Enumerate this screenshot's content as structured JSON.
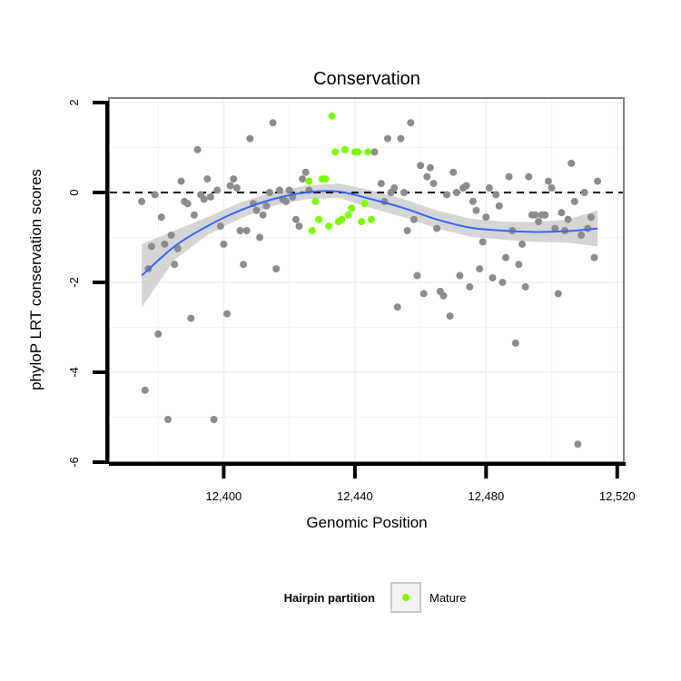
{
  "chart_data": {
    "type": "scatter",
    "title": "Conservation",
    "xlabel": "Genomic Position",
    "ylabel": "phyloP LRT conservation scores",
    "xlim": [
      12365,
      12522
    ],
    "ylim": [
      -6,
      2.1
    ],
    "x_ticks": [
      {
        "value": 12400,
        "label": "12,400"
      },
      {
        "value": 12440,
        "label": "12,440"
      },
      {
        "value": 12480,
        "label": "12,480"
      },
      {
        "value": 12520,
        "label": "12,520"
      }
    ],
    "y_ticks": [
      {
        "value": 2,
        "label": "2"
      },
      {
        "value": 0,
        "label": "0"
      },
      {
        "value": -2,
        "label": "-2"
      },
      {
        "value": -4,
        "label": "-4"
      },
      {
        "value": -6,
        "label": "-6"
      }
    ],
    "grid": true,
    "reference_line": {
      "y": 0,
      "style": "dashed"
    },
    "legend": {
      "title": "Hairpin partition",
      "position": "bottom",
      "entries": [
        {
          "label": "Mature",
          "color": "#7cfc00"
        }
      ]
    },
    "colors": {
      "other": "#8c8c8c",
      "mature": "#7cfc00",
      "smooth_line": "#3366ff",
      "ribbon": "#d0d0d0"
    },
    "series": [
      {
        "group": "other",
        "points": [
          [
            12375,
            -0.2
          ],
          [
            12376,
            -4.4
          ],
          [
            12377,
            -1.7
          ],
          [
            12378,
            -1.2
          ],
          [
            12379,
            -0.05
          ],
          [
            12380,
            -3.15
          ],
          [
            12381,
            -0.55
          ],
          [
            12382,
            -1.15
          ],
          [
            12383,
            -5.05
          ],
          [
            12384,
            -0.95
          ],
          [
            12385,
            -1.6
          ],
          [
            12386,
            -1.25
          ],
          [
            12387,
            0.25
          ],
          [
            12388,
            -0.2
          ],
          [
            12389,
            -0.25
          ],
          [
            12390,
            -2.8
          ],
          [
            12391,
            -0.5
          ],
          [
            12392,
            0.95
          ],
          [
            12393,
            -0.05
          ],
          [
            12394,
            -0.15
          ],
          [
            12395,
            0.3
          ],
          [
            12396,
            -0.1
          ],
          [
            12397,
            -5.05
          ],
          [
            12398,
            0.05
          ],
          [
            12399,
            -0.75
          ],
          [
            12400,
            -1.15
          ],
          [
            12401,
            -2.7
          ],
          [
            12402,
            0.15
          ],
          [
            12403,
            0.3
          ],
          [
            12404,
            0.1
          ],
          [
            12405,
            -0.85
          ],
          [
            12406,
            -1.6
          ],
          [
            12407,
            -0.85
          ],
          [
            12408,
            1.2
          ],
          [
            12409,
            -0.25
          ],
          [
            12410,
            -0.4
          ],
          [
            12411,
            -1.0
          ],
          [
            12412,
            -0.5
          ],
          [
            12413,
            -0.3
          ],
          [
            12414,
            0.0
          ],
          [
            12415,
            1.55
          ],
          [
            12416,
            -1.7
          ],
          [
            12417,
            0.05
          ],
          [
            12418,
            -0.15
          ],
          [
            12419,
            -0.2
          ],
          [
            12420,
            0.05
          ],
          [
            12421,
            -0.1
          ],
          [
            12422,
            -0.6
          ],
          [
            12423,
            -0.75
          ],
          [
            12424,
            0.3
          ],
          [
            12425,
            0.45
          ],
          [
            12426,
            0.05
          ],
          [
            12446,
            0.9
          ],
          [
            12448,
            0.2
          ],
          [
            12449,
            -0.2
          ],
          [
            12450,
            1.2
          ],
          [
            12451,
            0.0
          ],
          [
            12452,
            0.1
          ],
          [
            12453,
            -2.55
          ],
          [
            12454,
            1.2
          ],
          [
            12455,
            0.0
          ],
          [
            12456,
            -0.85
          ],
          [
            12457,
            1.55
          ],
          [
            12458,
            -0.6
          ],
          [
            12459,
            -1.85
          ],
          [
            12460,
            0.6
          ],
          [
            12461,
            -2.25
          ],
          [
            12462,
            0.35
          ],
          [
            12463,
            0.55
          ],
          [
            12464,
            0.2
          ],
          [
            12465,
            -0.8
          ],
          [
            12466,
            -2.2
          ],
          [
            12467,
            -2.3
          ],
          [
            12468,
            -0.05
          ],
          [
            12469,
            -2.75
          ],
          [
            12470,
            0.45
          ],
          [
            12471,
            0.0
          ],
          [
            12472,
            -1.85
          ],
          [
            12473,
            0.1
          ],
          [
            12474,
            0.15
          ],
          [
            12475,
            -2.1
          ],
          [
            12476,
            -0.2
          ],
          [
            12477,
            -0.4
          ],
          [
            12478,
            -1.7
          ],
          [
            12479,
            -1.1
          ],
          [
            12480,
            -0.55
          ],
          [
            12481,
            0.1
          ],
          [
            12482,
            -1.9
          ],
          [
            12483,
            -0.05
          ],
          [
            12484,
            -0.3
          ],
          [
            12485,
            -2.0
          ],
          [
            12486,
            -1.45
          ],
          [
            12487,
            0.35
          ],
          [
            12488,
            -0.85
          ],
          [
            12489,
            -3.35
          ],
          [
            12490,
            -1.6
          ],
          [
            12491,
            -1.15
          ],
          [
            12492,
            -2.1
          ],
          [
            12493,
            0.35
          ],
          [
            12494,
            -0.5
          ],
          [
            12495,
            -0.5
          ],
          [
            12496,
            -0.65
          ],
          [
            12497,
            -0.5
          ],
          [
            12498,
            -0.5
          ],
          [
            12499,
            0.25
          ],
          [
            12500,
            0.1
          ],
          [
            12501,
            -0.8
          ],
          [
            12502,
            -2.25
          ],
          [
            12503,
            -0.45
          ],
          [
            12504,
            -0.85
          ],
          [
            12505,
            -0.6
          ],
          [
            12506,
            0.65
          ],
          [
            12507,
            -0.2
          ],
          [
            12508,
            -5.6
          ],
          [
            12509,
            -0.95
          ],
          [
            12510,
            0.0
          ],
          [
            12511,
            -0.8
          ],
          [
            12512,
            -0.55
          ],
          [
            12513,
            -1.45
          ],
          [
            12514,
            0.25
          ]
        ]
      },
      {
        "group": "mature",
        "name": "Mature",
        "points": [
          [
            12426,
            0.25
          ],
          [
            12427,
            -0.85
          ],
          [
            12428,
            -0.2
          ],
          [
            12429,
            -0.6
          ],
          [
            12430,
            0.3
          ],
          [
            12431,
            0.3
          ],
          [
            12432,
            -0.75
          ],
          [
            12433,
            1.7
          ],
          [
            12434,
            0.9
          ],
          [
            12435,
            -0.65
          ],
          [
            12436,
            -0.6
          ],
          [
            12437,
            0.95
          ],
          [
            12438,
            -0.5
          ],
          [
            12439,
            -0.35
          ],
          [
            12440,
            0.9
          ],
          [
            12441,
            0.9
          ],
          [
            12442,
            -0.65
          ],
          [
            12443,
            -0.25
          ],
          [
            12444,
            0.9
          ],
          [
            12445,
            -0.6
          ]
        ]
      }
    ],
    "smooth": {
      "x": [
        12375,
        12385,
        12395,
        12405,
        12415,
        12425,
        12435,
        12445,
        12455,
        12465,
        12475,
        12485,
        12495,
        12505,
        12514
      ],
      "y": [
        -1.85,
        -1.2,
        -0.75,
        -0.4,
        -0.15,
        0.0,
        0.02,
        -0.15,
        -0.35,
        -0.6,
        -0.78,
        -0.85,
        -0.88,
        -0.86,
        -0.8
      ],
      "lower": [
        -2.55,
        -1.5,
        -0.95,
        -0.58,
        -0.3,
        -0.15,
        -0.12,
        -0.35,
        -0.55,
        -0.8,
        -0.98,
        -1.05,
        -1.1,
        -1.12,
        -1.2
      ],
      "upper": [
        -1.15,
        -0.85,
        -0.55,
        -0.22,
        0.0,
        0.15,
        0.2,
        0.05,
        -0.15,
        -0.4,
        -0.58,
        -0.65,
        -0.66,
        -0.6,
        -0.4
      ]
    }
  }
}
